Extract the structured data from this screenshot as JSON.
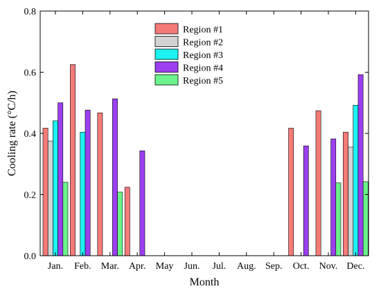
{
  "chart_data": {
    "type": "bar",
    "xlabel": "Month",
    "ylabel": "Cooling rate (°C/h)",
    "ylim": [
      0,
      0.8
    ],
    "yticks": [
      "0.0",
      "0.2",
      "0.4",
      "0.6",
      "0.8"
    ],
    "categories": [
      "Jan.",
      "Feb.",
      "Mar.",
      "Apr.",
      "May",
      "Jun.",
      "Jul.",
      "Aug.",
      "Sep.",
      "Oct.",
      "Nov.",
      "Dec."
    ],
    "legend_position": "top-center",
    "series": [
      {
        "name": "Region #1",
        "color": "#F47B78",
        "values": [
          0.417,
          0.625,
          0.467,
          0.224,
          null,
          null,
          null,
          null,
          null,
          0.417,
          0.474,
          0.404
        ]
      },
      {
        "name": "Region #2",
        "color": "#D3D3D3",
        "values": [
          0.375,
          null,
          null,
          null,
          null,
          null,
          null,
          null,
          null,
          null,
          null,
          0.355
        ]
      },
      {
        "name": "Region #3",
        "color": "#1CF2F2",
        "values": [
          0.441,
          0.404,
          null,
          null,
          null,
          null,
          null,
          null,
          null,
          null,
          null,
          0.492
        ]
      },
      {
        "name": "Region #4",
        "color": "#9B3FF0",
        "values": [
          0.5,
          0.476,
          0.513,
          0.343,
          null,
          null,
          null,
          null,
          null,
          0.359,
          0.382,
          0.592
        ]
      },
      {
        "name": "Region #5",
        "color": "#6CF28A",
        "values": [
          0.24,
          null,
          0.208,
          null,
          null,
          null,
          null,
          null,
          null,
          null,
          0.238,
          0.242
        ]
      }
    ]
  }
}
